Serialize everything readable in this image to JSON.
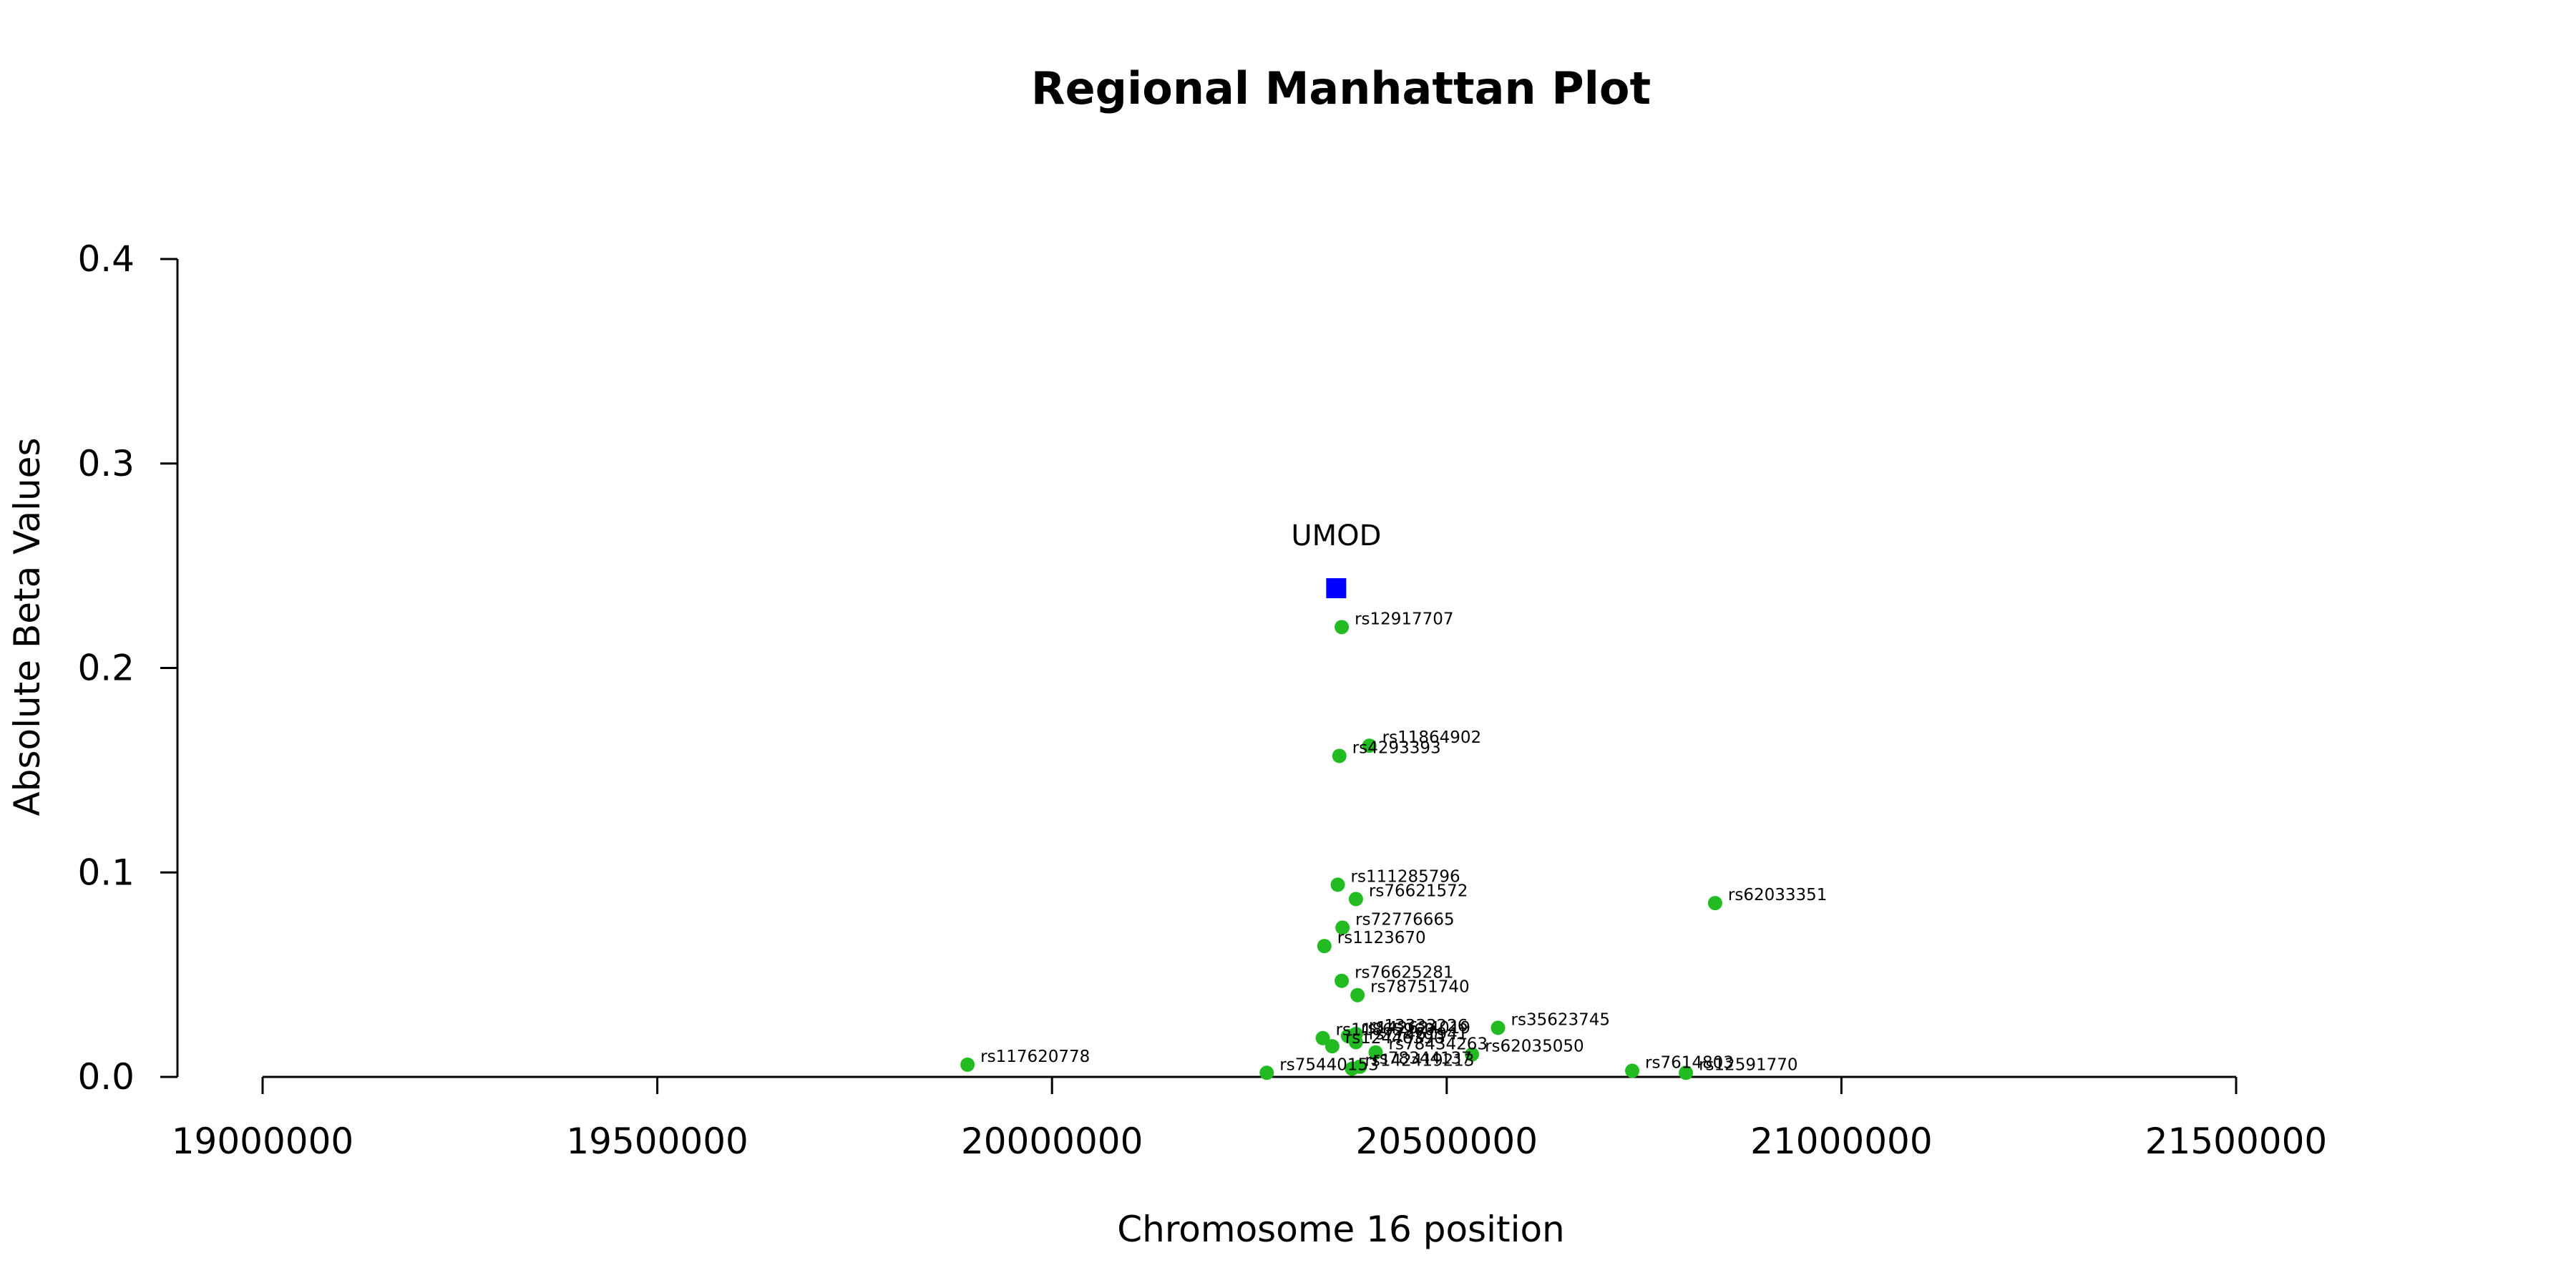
{
  "chart_data": {
    "type": "scatter",
    "title": "Regional Manhattan Plot",
    "xlabel": "Chromosome 16 position",
    "ylabel": "Absolute Beta Values",
    "xlim": [
      19000000,
      21500000
    ],
    "ylim": [
      0,
      0.4
    ],
    "x_ticks": [
      19000000,
      19500000,
      20000000,
      20500000,
      21000000,
      21500000
    ],
    "x_tick_labels": [
      "19000000",
      "19500000",
      "20000000",
      "20500000",
      "21000000",
      "21500000"
    ],
    "y_ticks": [
      0,
      0.1,
      0.2,
      0.3,
      0.4
    ],
    "y_tick_labels": [
      "0.0",
      "0.1",
      "0.2",
      "0.3",
      "0.4"
    ],
    "grid": false,
    "point_color": "#22bb22",
    "lead_color": "#0000ff",
    "lead_marker": {
      "gene": "UMOD",
      "x": 20360000,
      "y": 0.239
    },
    "points": [
      {
        "label": "rs12917707",
        "x": 20367000,
        "y": 0.22
      },
      {
        "label": "rs11864902",
        "x": 20402000,
        "y": 0.162
      },
      {
        "label": "rs4293393",
        "x": 20364000,
        "y": 0.157
      },
      {
        "label": "rs111285796",
        "x": 20362000,
        "y": 0.094
      },
      {
        "label": "rs76621572",
        "x": 20385000,
        "y": 0.087
      },
      {
        "label": "rs62033351",
        "x": 20840000,
        "y": 0.085
      },
      {
        "label": "rs72776665",
        "x": 20368000,
        "y": 0.073
      },
      {
        "label": "rs1123670",
        "x": 20345000,
        "y": 0.064
      },
      {
        "label": "rs76625281",
        "x": 20367000,
        "y": 0.047
      },
      {
        "label": "rs78751740",
        "x": 20387000,
        "y": 0.04
      },
      {
        "label": "rs35623745",
        "x": 20565000,
        "y": 0.024
      },
      {
        "label": "rs13333226",
        "x": 20385000,
        "y": 0.021
      },
      {
        "label": "rs142624019",
        "x": 20375000,
        "y": 0.02
      },
      {
        "label": "rs11865960",
        "x": 20343000,
        "y": 0.019
      },
      {
        "label": "rs77461941",
        "x": 20385000,
        "y": 0.017
      },
      {
        "label": "rs12446390",
        "x": 20355000,
        "y": 0.015
      },
      {
        "label": "rs62035050",
        "x": 20532000,
        "y": 0.011
      },
      {
        "label": "rs78434263",
        "x": 20410000,
        "y": 0.012
      },
      {
        "label": "rs117620778",
        "x": 19893000,
        "y": 0.006
      },
      {
        "label": "rs78344137",
        "x": 20390000,
        "y": 0.005
      },
      {
        "label": "rs142419213",
        "x": 20380000,
        "y": 0.004
      },
      {
        "label": "rs7614803",
        "x": 20735000,
        "y": 0.003
      },
      {
        "label": "rs12591770",
        "x": 20803000,
        "y": 0.002
      },
      {
        "label": "rs75440153",
        "x": 20272000,
        "y": 0.002
      }
    ]
  }
}
